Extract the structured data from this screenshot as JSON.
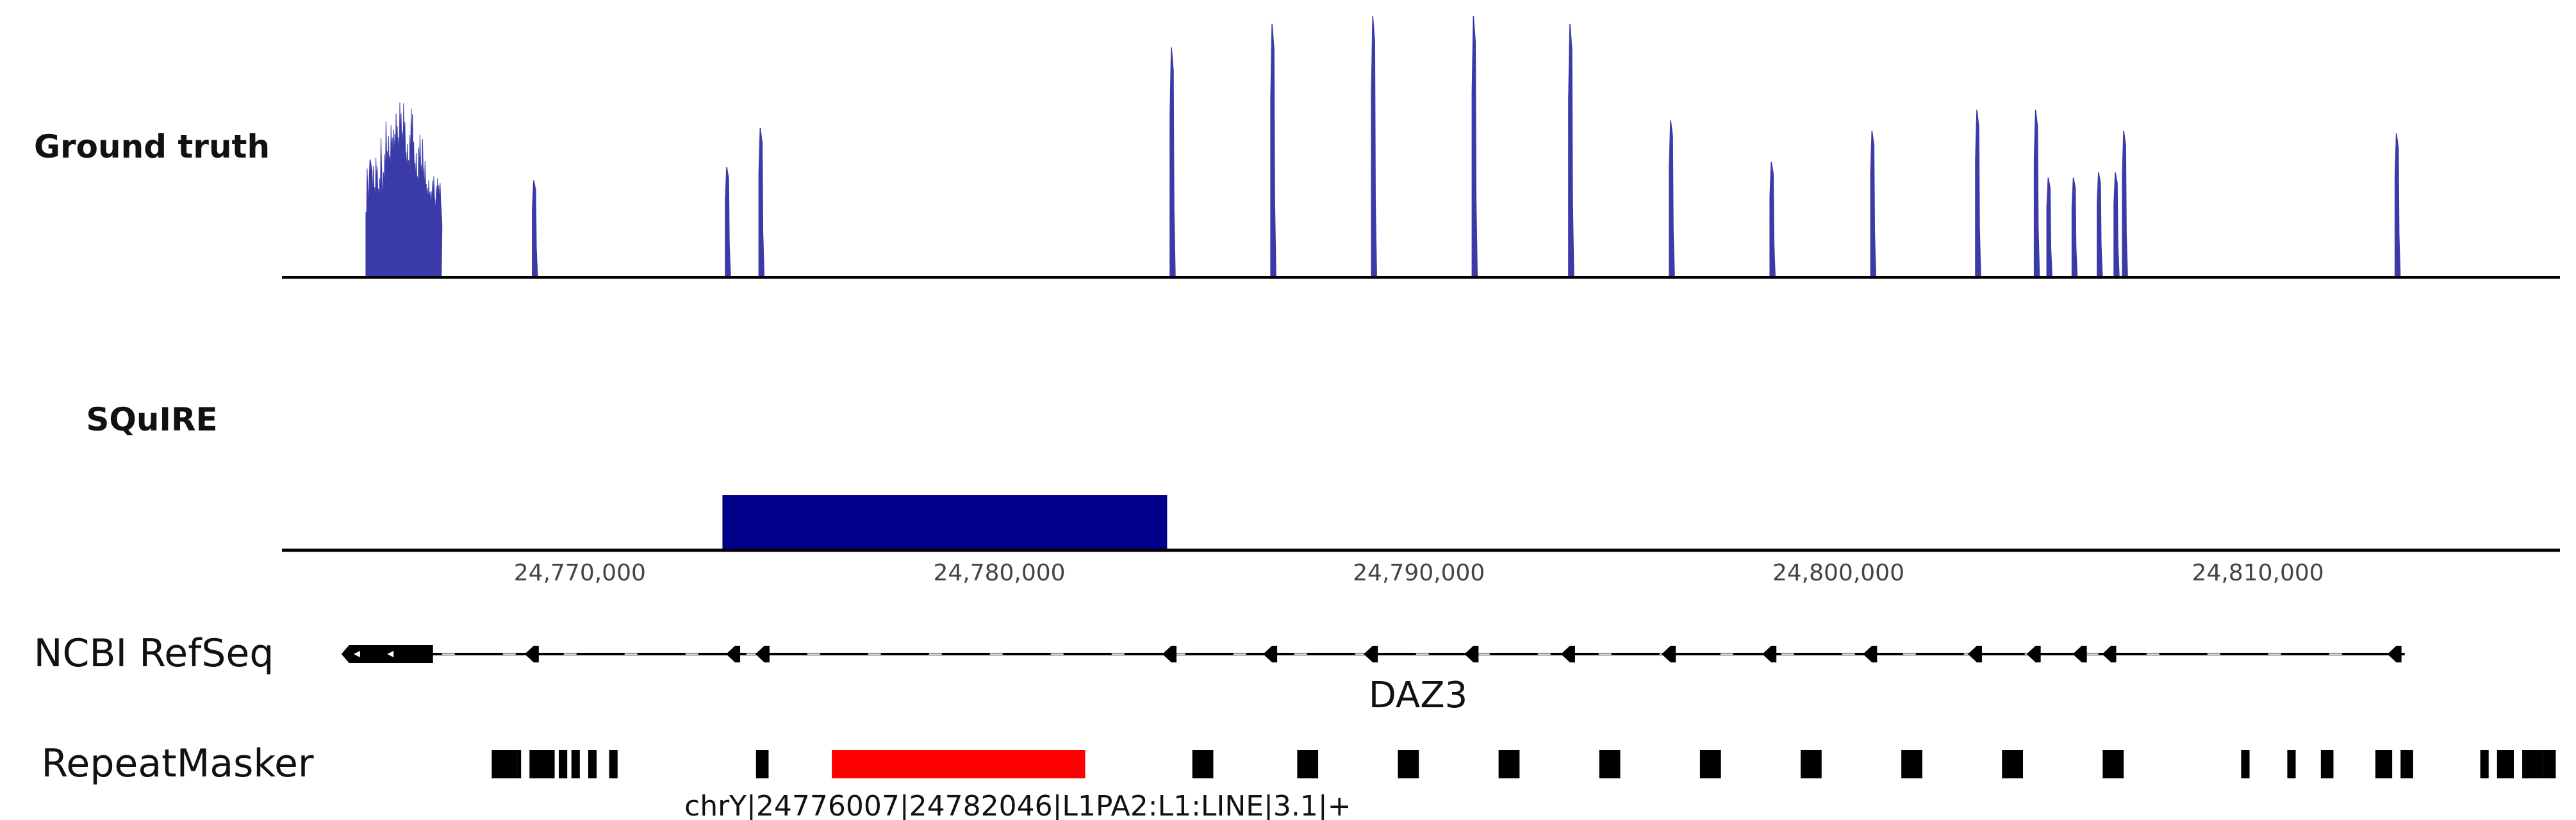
{
  "tracks": {
    "ground_truth": {
      "label": "Ground truth",
      "color": "#3a3aa8"
    },
    "squire": {
      "label": "SQuIRE",
      "color": "#00008b"
    },
    "refseq": {
      "label": "NCBI RefSeq",
      "gene_name": "DAZ3"
    },
    "repeatmasker": {
      "label": "RepeatMasker",
      "highlight_color": "#ff0000",
      "highlight_label": "chrY|24776007|24782046|L1PA2:L1:LINE|3.1|+"
    }
  },
  "axis": {
    "tick_labels": [
      "24,770,000",
      "24,780,000",
      "24,790,000",
      "24,800,000",
      "24,810,000"
    ]
  },
  "chart_data": {
    "type": "genome_tracks",
    "x_unit": "bp",
    "xlim": [
      24762900,
      24817200
    ],
    "ticks": [
      24770000,
      24780000,
      24790000,
      24800000,
      24810000
    ],
    "ground_truth_peaks": [
      [
        24765000,
        0.45
      ],
      [
        24768900,
        0.37
      ],
      [
        24773500,
        0.42
      ],
      [
        24774300,
        0.57
      ],
      [
        24784100,
        0.88
      ],
      [
        24786500,
        0.97
      ],
      [
        24788900,
        1.0
      ],
      [
        24791300,
        1.0
      ],
      [
        24793600,
        0.97
      ],
      [
        24796000,
        0.6
      ],
      [
        24798400,
        0.44
      ],
      [
        24800800,
        0.56
      ],
      [
        24803300,
        0.64
      ],
      [
        24804700,
        0.64
      ],
      [
        24805000,
        0.38
      ],
      [
        24805600,
        0.38
      ],
      [
        24806200,
        0.4
      ],
      [
        24806600,
        0.4
      ],
      [
        24806800,
        0.56
      ],
      [
        24813300,
        0.55
      ]
    ],
    "ground_truth_cluster": {
      "start": 24764900,
      "end": 24766700,
      "max": 0.67
    },
    "squire_interval": [
      24773400,
      24784000
    ],
    "refseq_gene": {
      "start": 24764500,
      "end": 24813500,
      "strand": "-",
      "thick_start": 24764500,
      "thick_end": 24766500,
      "exons": [
        24768900,
        24773700,
        24774400,
        24784100,
        24786500,
        24788900,
        24791300,
        24793600,
        24796000,
        24798400,
        24800800,
        24803300,
        24804700,
        24805800,
        24806500,
        24813300
      ]
    },
    "repeatmasker_blocks": [
      [
        24767900,
        24768500
      ],
      [
        24768500,
        24768600
      ],
      [
        24768800,
        24769300
      ],
      [
        24769300,
        24769400
      ],
      [
        24769500,
        24769700
      ],
      [
        24769800,
        24770000
      ],
      [
        24770200,
        24770400
      ],
      [
        24770700,
        24770900
      ],
      [
        24774200,
        24774500
      ],
      [
        24776600,
        24777100
      ],
      [
        24784600,
        24785100
      ],
      [
        24787100,
        24787600
      ],
      [
        24789500,
        24790000
      ],
      [
        24791900,
        24792400
      ],
      [
        24794300,
        24794800
      ],
      [
        24796700,
        24797200
      ],
      [
        24799100,
        24799600
      ],
      [
        24801500,
        24802000
      ],
      [
        24803900,
        24804400
      ],
      [
        24806300,
        24806800
      ],
      [
        24809600,
        24809800
      ],
      [
        24810700,
        24810900
      ],
      [
        24811500,
        24811800
      ],
      [
        24812800,
        24813200
      ],
      [
        24813400,
        24813700
      ],
      [
        24815300,
        24815500
      ],
      [
        24815700,
        24816100
      ],
      [
        24816300,
        24816800
      ],
      [
        24816800,
        24817100
      ]
    ],
    "repeatmasker_highlight": [
      24776007,
      24782046
    ]
  }
}
